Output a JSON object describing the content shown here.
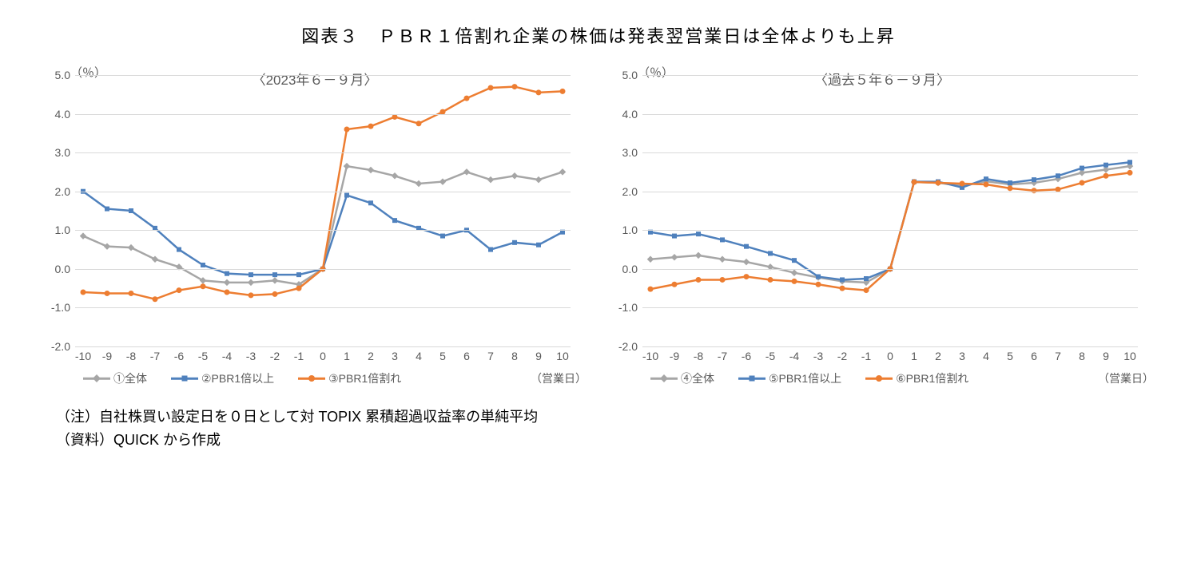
{
  "title": "図表３　ＰＢＲ１倍割れ企業の株価は発表翌営業日は全体よりも上昇",
  "yunit_label": "（％）",
  "xaxis_caption": "（営業日）",
  "note1": "（注）自社株買い設定日を０日として対 TOPIX 累積超過収益率の単純平均",
  "note2": "（資料）QUICK から作成",
  "colors": {
    "grey": "#a6a6a6",
    "blue": "#4f81bd",
    "orange": "#ed7d31",
    "grid": "#d9d9d9",
    "text": "#595959",
    "bg": "#ffffff"
  },
  "x_values": [
    -10,
    -9,
    -8,
    -7,
    -6,
    -5,
    -4,
    -3,
    -2,
    -1,
    0,
    1,
    2,
    3,
    4,
    5,
    6,
    7,
    8,
    9,
    10
  ],
  "y_ticks": [
    -2.0,
    -1.0,
    0.0,
    1.0,
    2.0,
    3.0,
    4.0,
    5.0
  ],
  "ylim": [
    -2.0,
    5.0
  ],
  "marker_size": 6,
  "line_width": 2.5,
  "chart_left": {
    "subtitle": "〈2023年６－９月〉",
    "legend": {
      "s1": "①全体",
      "s2": "②PBR1倍以上",
      "s3": "③PBR1倍割れ"
    },
    "series_grey": [
      0.85,
      0.58,
      0.55,
      0.25,
      0.05,
      -0.3,
      -0.35,
      -0.35,
      -0.3,
      -0.4,
      0.0,
      2.65,
      2.55,
      2.4,
      2.2,
      2.25,
      2.5,
      2.3,
      2.4,
      2.3,
      2.5
    ],
    "series_blue": [
      2.0,
      1.55,
      1.5,
      1.05,
      0.5,
      0.1,
      -0.12,
      -0.15,
      -0.15,
      -0.15,
      0.0,
      1.9,
      1.7,
      1.25,
      1.05,
      0.85,
      1.0,
      0.5,
      0.68,
      0.62,
      0.95
    ],
    "series_orange": [
      -0.6,
      -0.63,
      -0.63,
      -0.78,
      -0.55,
      -0.45,
      -0.6,
      -0.68,
      -0.65,
      -0.5,
      0.0,
      3.6,
      3.68,
      3.92,
      3.75,
      4.05,
      4.4,
      4.67,
      4.7,
      4.55,
      4.58
    ]
  },
  "chart_right": {
    "subtitle": "〈過去５年６－９月〉",
    "legend": {
      "s1": "④全体",
      "s2": "⑤PBR1倍以上",
      "s3": "⑥PBR1倍割れ"
    },
    "series_grey": [
      0.25,
      0.3,
      0.35,
      0.25,
      0.18,
      0.05,
      -0.1,
      -0.22,
      -0.32,
      -0.35,
      0.0,
      2.24,
      2.22,
      2.14,
      2.26,
      2.18,
      2.22,
      2.32,
      2.48,
      2.56,
      2.65
    ],
    "series_blue": [
      0.95,
      0.85,
      0.9,
      0.75,
      0.58,
      0.4,
      0.22,
      -0.2,
      -0.28,
      -0.25,
      0.0,
      2.25,
      2.25,
      2.1,
      2.32,
      2.22,
      2.3,
      2.4,
      2.6,
      2.68,
      2.75
    ],
    "series_orange": [
      -0.52,
      -0.4,
      -0.28,
      -0.28,
      -0.2,
      -0.28,
      -0.32,
      -0.4,
      -0.5,
      -0.55,
      0.0,
      2.24,
      2.22,
      2.2,
      2.18,
      2.08,
      2.02,
      2.05,
      2.22,
      2.4,
      2.48
    ]
  }
}
